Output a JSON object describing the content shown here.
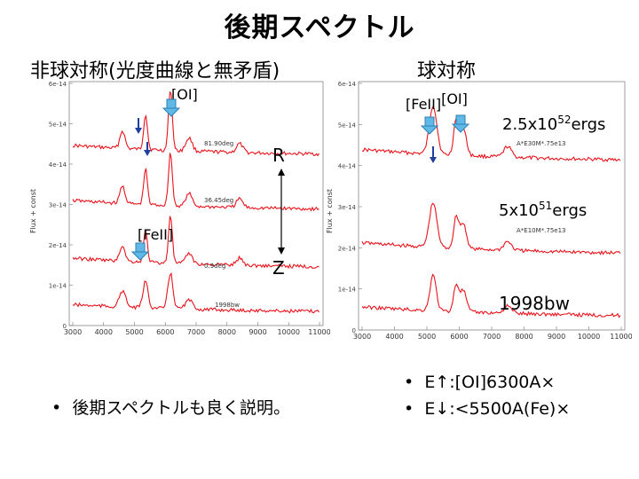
{
  "slide": {
    "title": "後期スペクトル",
    "left_heading": "非球対称(光度曲線と無矛盾)",
    "right_heading": "球対称",
    "bullet_left": "後期スペクトルも良く説明。",
    "bullets_right": [
      "E↑:[OI]6300A×",
      "E↓:<5500A(Fe)×"
    ],
    "bullet_symbol": "•"
  },
  "left_plot": {
    "y_axis_label": "Flux + const",
    "y_ticks": [
      "6e-14",
      "5e-14",
      "4e-14",
      "3e-14",
      "2e-14",
      "1e-14",
      "0"
    ],
    "x_ticks": [
      "3000",
      "4000",
      "5000",
      "6000",
      "7000",
      "8000",
      "9000",
      "10000",
      "11000"
    ],
    "curve_labels": [
      "81.90deg",
      "36.45deg",
      "0.9deg",
      "1998bw"
    ],
    "annotations": {
      "oi": "[OI]",
      "feii": "[FeII]",
      "r": "R",
      "z": "Z"
    }
  },
  "right_plot": {
    "y_axis_label": "Flux + const",
    "y_ticks": [
      "6e-14",
      "5e-14",
      "4e-14",
      "3e-14",
      "2e-14",
      "1e-14",
      "0"
    ],
    "x_ticks": [
      "3000",
      "4000",
      "5000",
      "6000",
      "7000",
      "8000",
      "9000",
      "10000",
      "11000"
    ],
    "curve_labels": [
      "A*E30M*.75e13",
      "A*E10M*.75e13"
    ],
    "annotations": {
      "feii_oi_prefix": "[FeII]",
      "feii_oi_suffix": "[OI]",
      "energy_high_mantissa": "2.5x10",
      "energy_high_exp": "52",
      "energy_high_unit": "ergs",
      "energy_low_mantissa": "5x10",
      "energy_low_exp": "51",
      "energy_low_unit": "ergs",
      "bw": "1998bw"
    }
  },
  "colors": {
    "spectrum": "#e8141c",
    "marker_fill": "#5fb8e6",
    "marker_stroke": "#2c7fb4",
    "arrow": "#1f3f9e"
  }
}
